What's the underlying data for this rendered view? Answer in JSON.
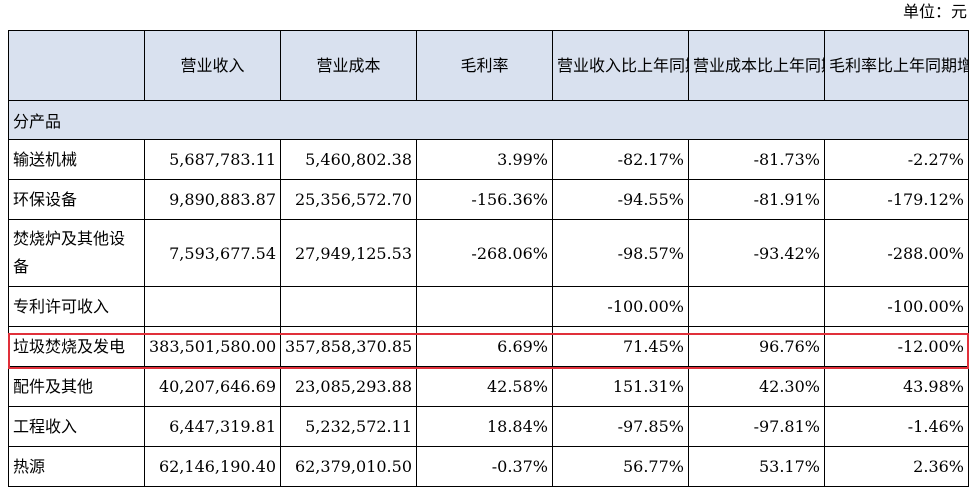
{
  "unit_label": "单位：元",
  "headers": [
    "",
    "营业收入",
    "营业成本",
    "毛利率",
    "营业收入比上年同期增减",
    "营业成本比上年同期增减",
    "毛利率比上年同期增减"
  ],
  "section_label": "分产品",
  "rows": [
    {
      "name": "输送机械",
      "revenue": "5,687,783.11",
      "cost": "5,460,802.38",
      "margin": "3.99%",
      "rev_change": "-82.17%",
      "cost_change": "-81.73%",
      "margin_change": "-2.27%"
    },
    {
      "name": "环保设备",
      "revenue": "9,890,883.87",
      "cost": "25,356,572.70",
      "margin": "-156.36%",
      "rev_change": "-94.55%",
      "cost_change": "-81.91%",
      "margin_change": "-179.12%"
    },
    {
      "name": "焚烧炉及其他设备",
      "revenue": "7,593,677.54",
      "cost": "27,949,125.53",
      "margin": "-268.06%",
      "rev_change": "-98.57%",
      "cost_change": "-93.42%",
      "margin_change": "-288.00%"
    },
    {
      "name": "专利许可收入",
      "revenue": "",
      "cost": "",
      "margin": "",
      "rev_change": "-100.00%",
      "cost_change": "",
      "margin_change": "-100.00%"
    },
    {
      "name": "垃圾焚烧及发电",
      "revenue": "383,501,580.00",
      "cost": "357,858,370.85",
      "margin": "6.69%",
      "rev_change": "71.45%",
      "cost_change": "96.76%",
      "margin_change": "-12.00%"
    },
    {
      "name": "配件及其他",
      "revenue": "40,207,646.69",
      "cost": "23,085,293.88",
      "margin": "42.58%",
      "rev_change": "151.31%",
      "cost_change": "42.30%",
      "margin_change": "43.98%"
    },
    {
      "name": "工程收入",
      "revenue": "6,447,319.81",
      "cost": "5,232,572.11",
      "margin": "18.84%",
      "rev_change": "-97.85%",
      "cost_change": "-97.81%",
      "margin_change": "-1.46%"
    },
    {
      "name": "热源",
      "revenue": "62,146,190.40",
      "cost": "62,379,010.50",
      "margin": "-0.37%",
      "rev_change": "56.77%",
      "cost_change": "53.17%",
      "margin_change": "2.36%"
    }
  ],
  "highlight_color": "#e0303a",
  "header_bg": "#d9e1ef"
}
